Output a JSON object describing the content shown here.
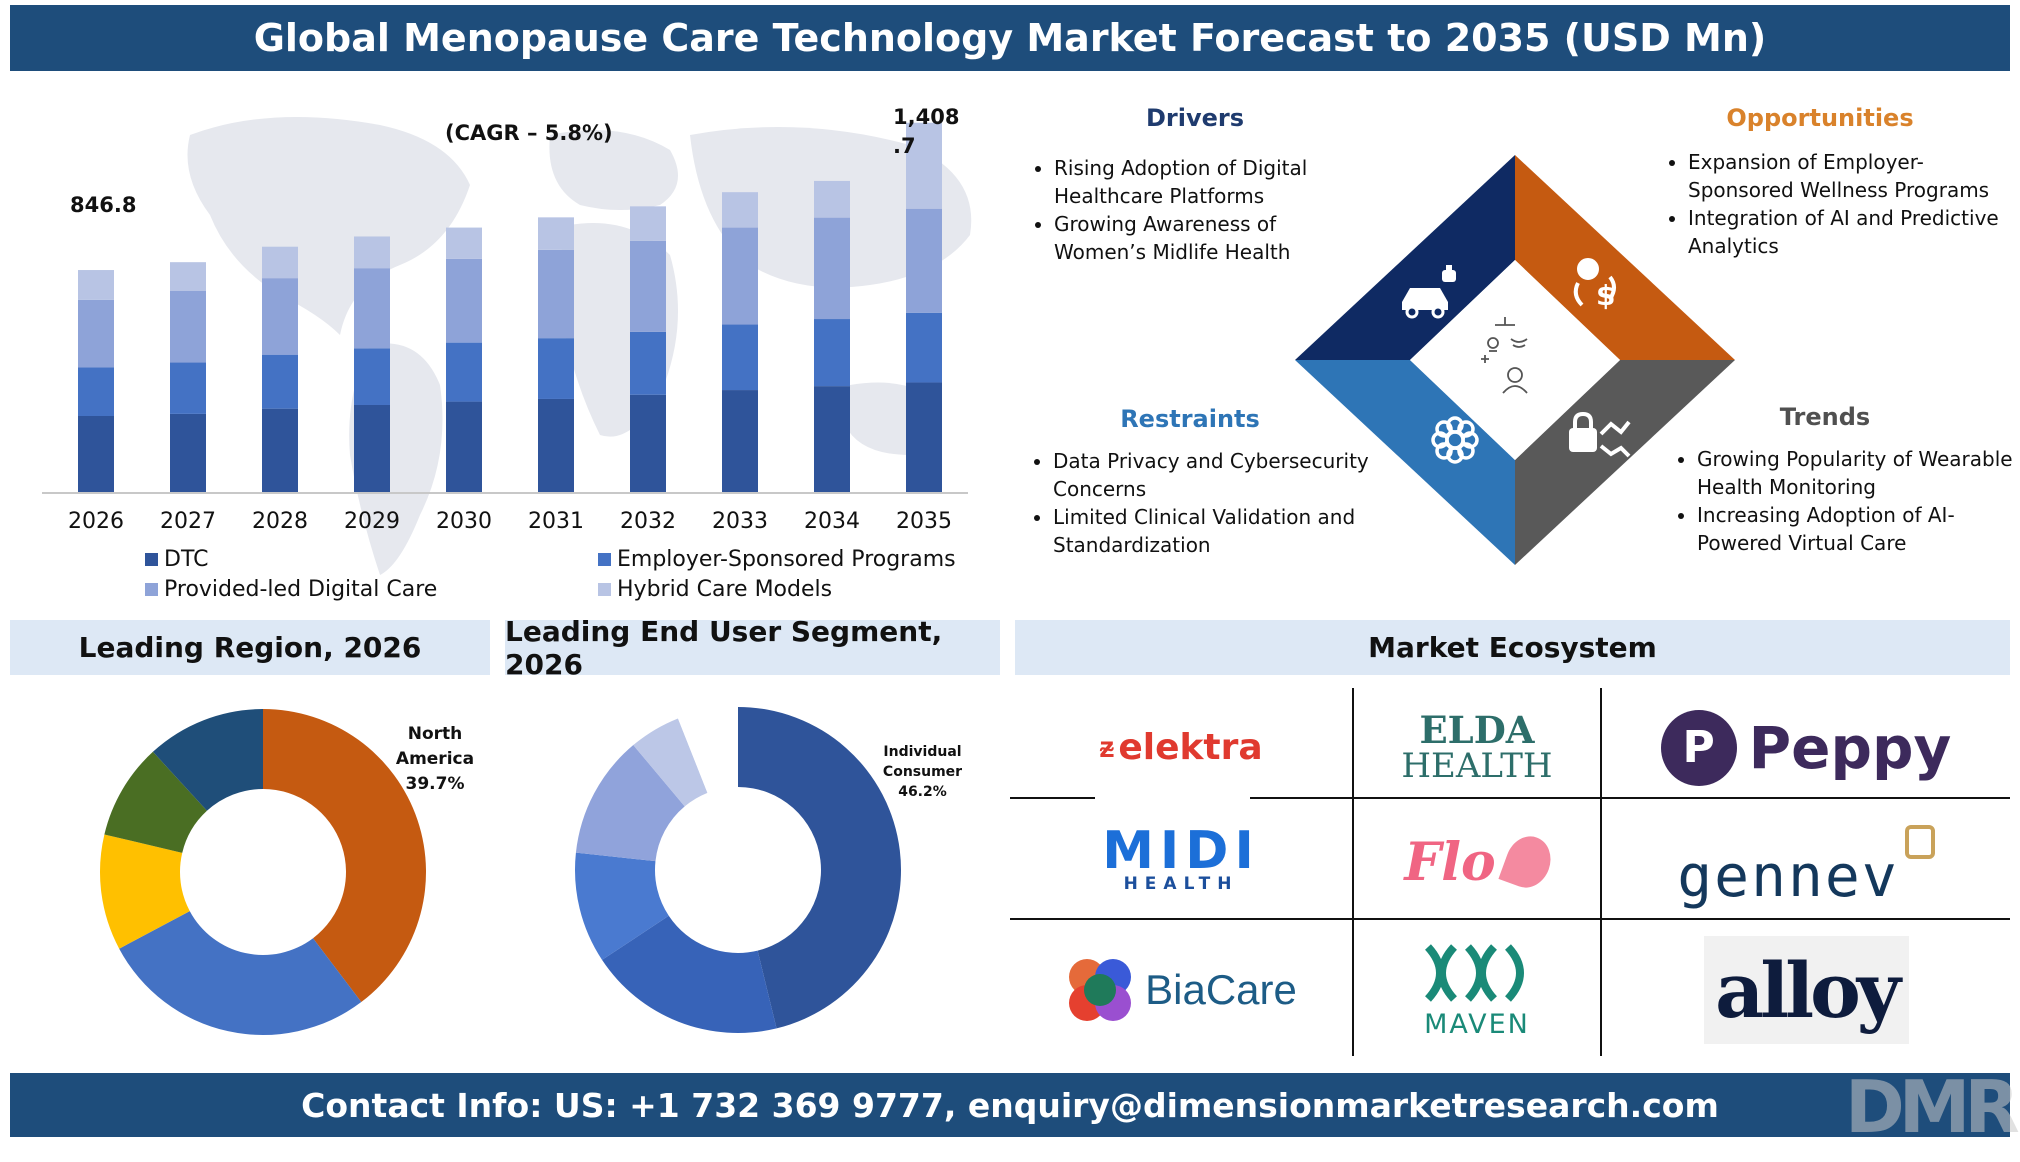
{
  "title": "Global Menopause Care Technology Market Forecast to 2035 (USD Mn)",
  "footer": "Contact Info: US: +1 732 369 9777, enquiry@dimensionmarketresearch.com",
  "watermark": "DMR",
  "chart_data": [
    {
      "type": "bar",
      "stacked": true,
      "categories": [
        "2026",
        "2027",
        "2028",
        "2029",
        "2030",
        "2031",
        "2032",
        "2033",
        "2034",
        "2035"
      ],
      "series": [
        {
          "name": "DTC",
          "color": "#2f549a",
          "values": [
            290,
            298,
            318,
            332,
            345,
            355,
            371,
            389,
            404,
            418
          ]
        },
        {
          "name": "Employer-Sponsored Programs",
          "color": "#4472c4",
          "values": [
            185,
            196,
            206,
            216,
            225,
            232,
            240,
            250,
            256,
            266
          ]
        },
        {
          "name": "Provided-led Digital Care",
          "color": "#8ea3d8",
          "values": [
            258,
            273,
            292,
            306,
            320,
            337,
            347,
            370,
            387,
            397
          ]
        },
        {
          "name": "Hybrid Care Models",
          "color": "#b8c4e4",
          "values": [
            114,
            110,
            120,
            121,
            119,
            124,
            132,
            135,
            140,
            328
          ]
        }
      ],
      "totals": [
        846.8,
        877,
        936,
        975,
        1009,
        1048,
        1090,
        1144,
        1187,
        1408.7
      ],
      "data_labels": {
        "first": "846.8",
        "last_line1": "1,408",
        "last_line2": ".7"
      },
      "annotation": "(CAGR – 5.8%)",
      "ylim": [
        0,
        1450
      ],
      "grid": false,
      "legend_position": "bottom"
    },
    {
      "type": "pie",
      "donut": true,
      "title": "Leading Region, 2026",
      "slices": [
        {
          "label": "North America",
          "value": 39.7,
          "color": "#c55a11"
        },
        {
          "label": "",
          "value": 27.5,
          "color": "#4472c4"
        },
        {
          "label": "",
          "value": 11.5,
          "color": "#ffc000"
        },
        {
          "label": "",
          "value": 9.5,
          "color": "#4a6e23"
        },
        {
          "label": "",
          "value": 11.8,
          "color": "#1f4e79"
        }
      ],
      "callout": {
        "line1": "North",
        "line2": "America",
        "line3": "39.7%"
      }
    },
    {
      "type": "pie",
      "donut": true,
      "title": "Leading End User Segment, 2026",
      "slices": [
        {
          "label": "Individual Consumer",
          "value": 46.2,
          "color": "#2f549a"
        },
        {
          "label": "",
          "value": 19.5,
          "color": "#3763b8"
        },
        {
          "label": "",
          "value": 11.0,
          "color": "#4a7ad0"
        },
        {
          "label": "",
          "value": 12.2,
          "color": "#90a3db"
        },
        {
          "label": "",
          "value": 5.1,
          "color": "#bcc7e7"
        },
        {
          "label": "",
          "value": 6.0,
          "color": "#ffffff"
        }
      ],
      "callout": {
        "line1": "Individual",
        "line2": "Consumer",
        "line3": "46.2%"
      }
    }
  ],
  "quadrants": {
    "drivers": {
      "title": "Drivers",
      "color": "#1f3b6e",
      "items": [
        "Rising Adoption of Digital Healthcare Platforms",
        "Growing Awareness of Women’s Midlife Health"
      ]
    },
    "opportunities": {
      "title": "Opportunities",
      "color": "#d9822b",
      "items": [
        "Expansion of Employer-Sponsored Wellness Programs",
        "Integration of AI and Predictive Analytics"
      ]
    },
    "restraints": {
      "title": "Restraints",
      "color": "#2e75b6",
      "items": [
        "Data Privacy and Cybersecurity Concerns",
        "Limited Clinical Validation and Standardization"
      ]
    },
    "trends": {
      "title": "Trends",
      "color": "#505050",
      "items": [
        "Growing Popularity of Wearable Health Monitoring",
        "Increasing Adoption of AI-Powered Virtual Care"
      ]
    }
  },
  "diamond_colors": {
    "top_left": "#0f2a63",
    "top_right": "#c55a11",
    "bottom_left": "#2e75b6",
    "bottom_right": "#595959"
  },
  "icons": {
    "drivers": "car-robot-icon",
    "opportunities": "idea-dollar-icon",
    "restraints": "gear-flower-icon",
    "trends": "lock-trend-icon",
    "center": "ai-person-icon"
  },
  "ecosystem": {
    "title": "Market Ecosystem",
    "logos": {
      "elektra": "elektra",
      "elda_1": "ELDA",
      "elda_2": "HEALTH",
      "peppy": "Peppy",
      "midi_1": "MIDI",
      "midi_2": "HEALTH",
      "flo": "Flo",
      "gennev": "gennev",
      "biacare": "BiaCare",
      "maven": "MAVEN",
      "alloy": "alloy"
    }
  }
}
